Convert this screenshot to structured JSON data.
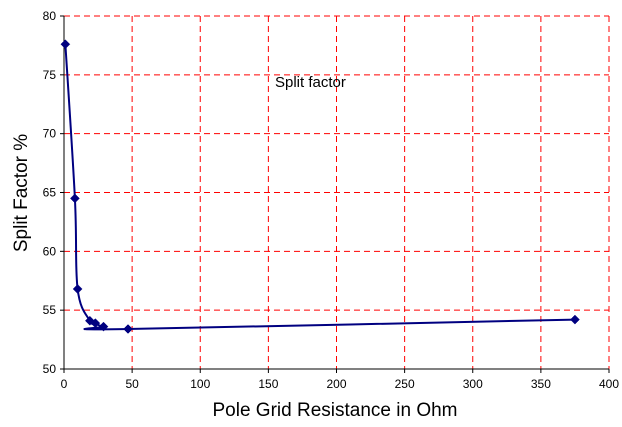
{
  "chart_data": {
    "type": "line",
    "title": "",
    "xlabel": "Pole Grid Resistance in Ohm",
    "ylabel": "Split Factor %",
    "xlim": [
      0,
      400
    ],
    "ylim": [
      50,
      80
    ],
    "xticks": [
      0,
      50,
      100,
      150,
      200,
      250,
      300,
      350,
      400
    ],
    "yticks": [
      50,
      55,
      60,
      65,
      70,
      75,
      80
    ],
    "xtick_labels": [
      "0",
      "50",
      "100",
      "150",
      "200",
      "250",
      "300",
      "350",
      "400"
    ],
    "ytick_labels": [
      "50",
      "55",
      "60",
      "65",
      "70",
      "75",
      "80"
    ],
    "grid": true,
    "grid_style": "dashed",
    "legend": "none",
    "annotation": "Split factor",
    "series": [
      {
        "x": [
          1,
          8,
          10,
          19,
          23,
          29,
          47,
          375
        ],
        "y": [
          77.6,
          64.5,
          56.8,
          54.1,
          53.9,
          53.6,
          53.4,
          54.2
        ]
      }
    ],
    "colors": {
      "series": "#000080",
      "grid": "#ff0000",
      "axis": "#000000"
    }
  }
}
